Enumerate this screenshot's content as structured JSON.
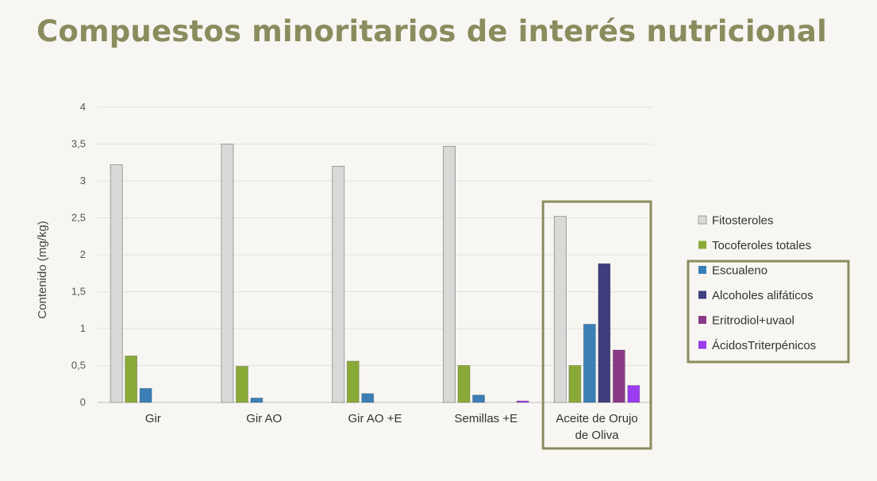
{
  "title": "Compuestos minoritarios de interés nutricional",
  "chart_data": {
    "type": "bar",
    "title": "Compuestos minoritarios de interés nutricional",
    "xlabel": "",
    "ylabel": "Contenido (mg/kg)",
    "ylim": [
      0,
      4
    ],
    "yticks": [
      "0",
      "0,5",
      "1",
      "1,5",
      "2",
      "2,5",
      "3",
      "3,5",
      "4"
    ],
    "grid": true,
    "legend_position": "right",
    "categories": [
      [
        "Gir"
      ],
      [
        "Gir AO"
      ],
      [
        "Gir AO +E"
      ],
      [
        "Semillas +E"
      ],
      [
        "Aceite de Orujo",
        "de Oliva"
      ]
    ],
    "series": [
      {
        "name": "Fitosteroles",
        "color": "#d9d9d7",
        "values": [
          3.22,
          3.5,
          3.2,
          3.47,
          2.52
        ]
      },
      {
        "name": "Tocoferoles totales",
        "color": "#8aaa38",
        "values": [
          0.63,
          0.49,
          0.56,
          0.5,
          0.5
        ]
      },
      {
        "name": "Escualeno",
        "color": "#3b7fb6",
        "values": [
          0.19,
          0.06,
          0.12,
          0.1,
          1.06
        ]
      },
      {
        "name": "Alcoholes alifáticos",
        "color": "#3f3e7c",
        "values": [
          0,
          0,
          0,
          0,
          1.88
        ]
      },
      {
        "name": "Eritrodiol+uvaol",
        "color": "#8a3a86",
        "values": [
          0,
          0,
          0,
          0,
          0.71
        ]
      },
      {
        "name": "ÁcidosTriterpénicos",
        "color": "#9b3cf0",
        "values": [
          0,
          0,
          0,
          0.02,
          0.23
        ]
      }
    ],
    "highlight_color": "#8a8c5e"
  }
}
